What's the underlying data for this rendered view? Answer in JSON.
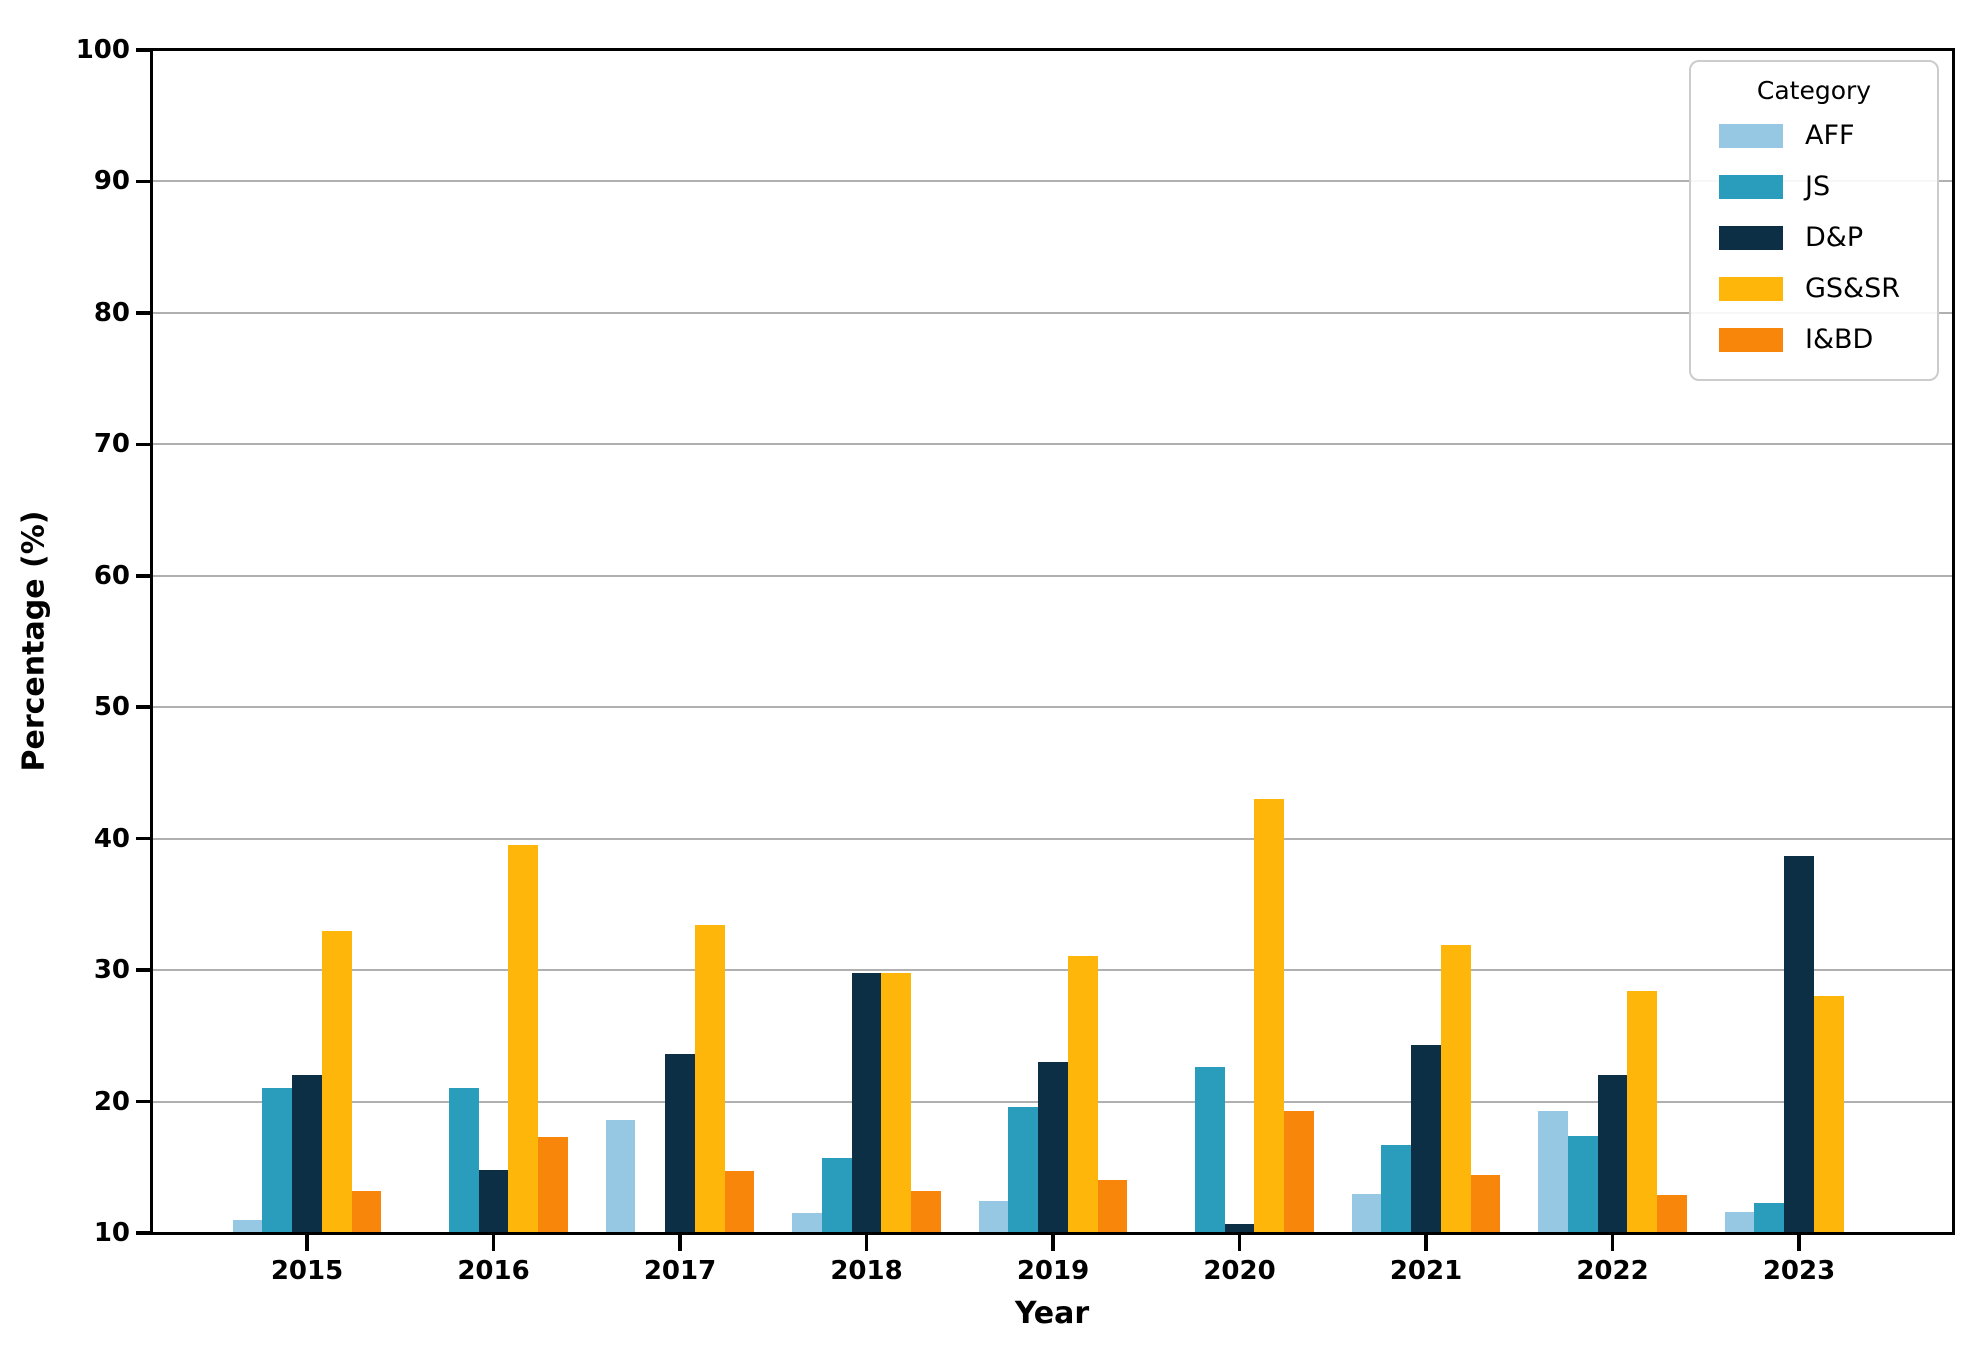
{
  "axes": {
    "ylabel": "Percentage (%)",
    "xlabel": "Year",
    "yticks": [
      100,
      90,
      80,
      70,
      60,
      50,
      40,
      30,
      20,
      10
    ],
    "ylim": [
      10,
      100
    ],
    "grid_color": "#b0b0b0",
    "spine_color": "#000000"
  },
  "legend": {
    "title": "Category",
    "position": "upper right"
  },
  "chart_data": {
    "type": "bar",
    "title": "",
    "xlabel": "Year",
    "ylabel": "Percentage (%)",
    "ylim": [
      10,
      100
    ],
    "grid": "horizontal",
    "legend_title": "Category",
    "legend_position": "upper right",
    "categories": [
      "2015",
      "2016",
      "2017",
      "2018",
      "2019",
      "2020",
      "2021",
      "2022",
      "2023"
    ],
    "series": [
      {
        "name": "AFF",
        "color": "#97c8e3",
        "values": [
          11.0,
          null,
          18.6,
          11.5,
          12.4,
          null,
          13.0,
          19.3,
          11.6
        ]
      },
      {
        "name": "JS",
        "color": "#2a9dbd",
        "values": [
          21.0,
          21.0,
          null,
          15.7,
          19.6,
          22.6,
          16.7,
          17.4,
          12.3
        ]
      },
      {
        "name": "D&P",
        "color": "#0c2f45",
        "values": [
          22.0,
          14.8,
          23.6,
          29.8,
          23.0,
          10.7,
          24.3,
          22.0,
          38.7
        ]
      },
      {
        "name": "GS&SR",
        "color": "#feb60a",
        "values": [
          33.0,
          39.5,
          33.4,
          29.8,
          31.1,
          43.0,
          31.9,
          28.4,
          28.0
        ]
      },
      {
        "name": "I&BD",
        "color": "#f8860b",
        "values": [
          13.2,
          17.3,
          14.7,
          13.2,
          14.0,
          19.3,
          14.4,
          12.9,
          null
        ]
      }
    ]
  }
}
